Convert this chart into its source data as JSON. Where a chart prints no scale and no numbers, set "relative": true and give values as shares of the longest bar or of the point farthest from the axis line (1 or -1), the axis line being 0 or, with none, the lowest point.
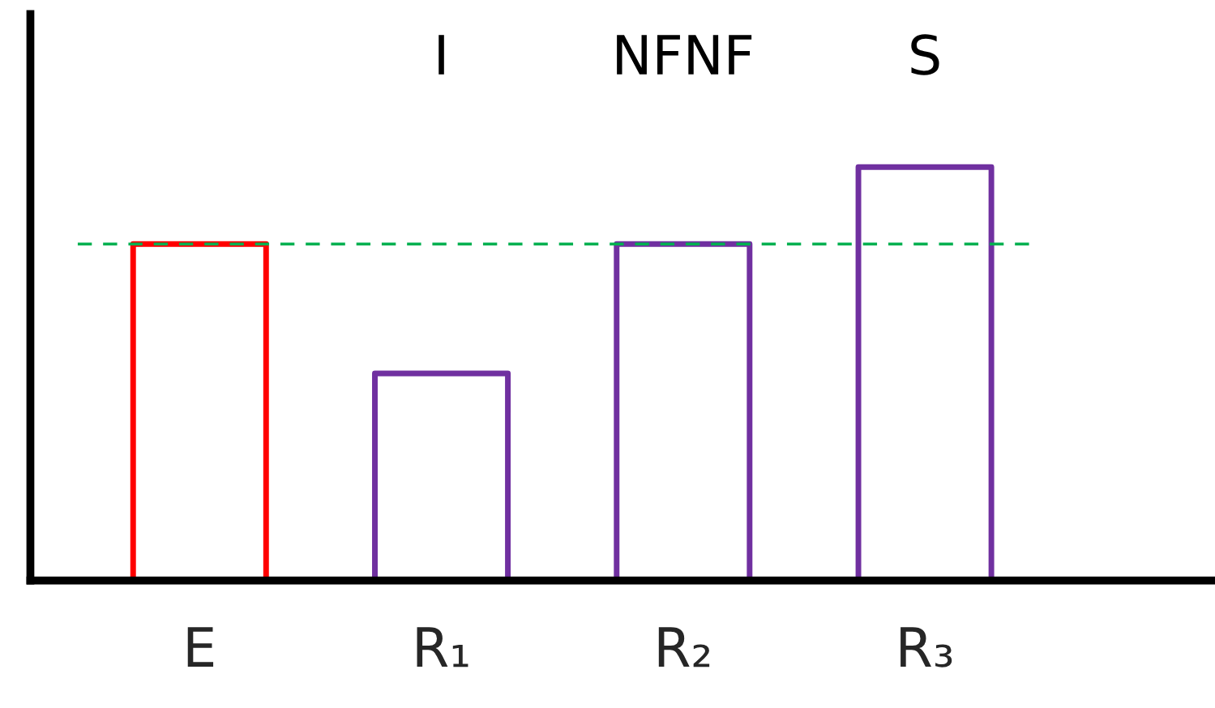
{
  "chart_data": {
    "type": "bar",
    "relative": true,
    "categories": [
      "E",
      "R₁",
      "R₂",
      "R₃"
    ],
    "values": [
      0.814,
      0.501,
      0.814,
      1
    ],
    "colors": [
      "#ff0000",
      "#7030a0",
      "#7030a0",
      "#7030a0"
    ],
    "annotations": [
      "I",
      "NFNF",
      "S"
    ],
    "ref_lines": [
      {
        "axis": "y",
        "value": 0.814,
        "color": "#00b050",
        "line_style": "dashed"
      }
    ],
    "grid": false,
    "legend": false
  }
}
